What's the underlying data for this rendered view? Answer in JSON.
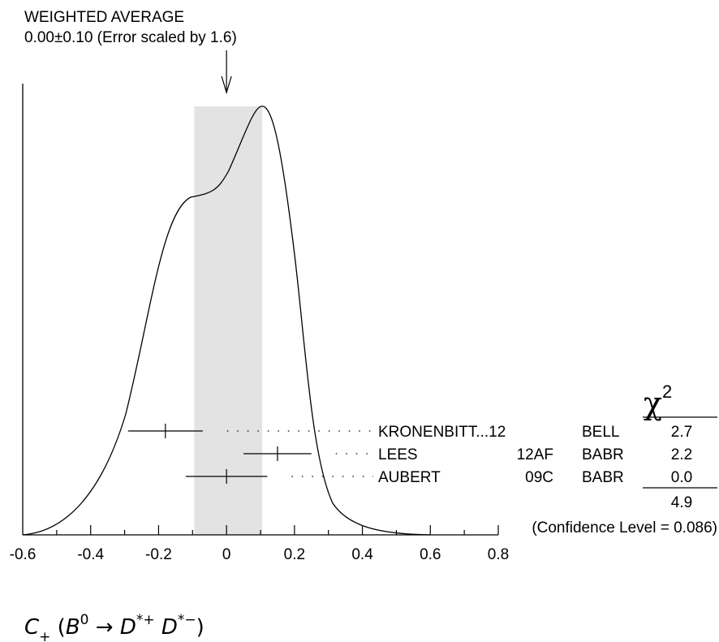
{
  "chart_data": {
    "type": "scatter",
    "title": "WEIGHTED AVERAGE",
    "subtitle": "0.00±0.10 (Error scaled by 1.6)",
    "xlabel": "C+ (B0 → D*+ D*−)",
    "xlim": [
      -0.6,
      0.8
    ],
    "x_ticks": [
      "-0.6",
      "-0.4",
      "-0.2",
      "0",
      "0.2",
      "0.4",
      "0.6",
      "0.8"
    ],
    "weighted_average": {
      "value": 0.0,
      "error": 0.1,
      "band": [
        -0.095,
        0.105
      ]
    },
    "chi2_header": "χ",
    "chi2_power": "2",
    "measurements": [
      {
        "author": "KRONENBITT...12",
        "ref": "",
        "experiment": "BELL",
        "value": -0.18,
        "error": 0.11,
        "chi2": "2.7"
      },
      {
        "author": "LEES",
        "ref": "12AF",
        "experiment": "BABR",
        "value": 0.15,
        "error": 0.1,
        "chi2": "2.2"
      },
      {
        "author": "AUBERT",
        "ref": "09C",
        "experiment": "BABR",
        "value": 0.0,
        "error": 0.12,
        "chi2": "0.0"
      }
    ],
    "chi2_total": "4.9",
    "confidence_level": "(Confidence Level = 0.086)",
    "grid": false
  }
}
